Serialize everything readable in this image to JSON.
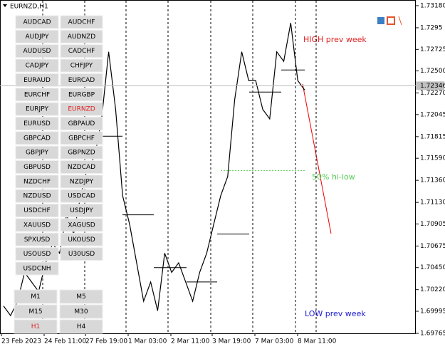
{
  "window_title": "EURNZD,H1",
  "symbols": [
    [
      "AUDCAD",
      "AUDCHF"
    ],
    [
      "AUDJPY",
      "AUDNZD"
    ],
    [
      "AUDUSD",
      "CADCHF"
    ],
    [
      "CADJPY",
      "CHFJPY"
    ],
    [
      "EURAUD",
      "EURCAD"
    ],
    [
      "EURCHF",
      "EURGBP"
    ],
    [
      "EURJPY",
      "EURNZD"
    ],
    [
      "EURUSD",
      "GBPAUD"
    ],
    [
      "GBPCAD",
      "GBPCHF"
    ],
    [
      "GBPJPY",
      "GBPNZD"
    ],
    [
      "GBPUSD",
      "NZDCAD"
    ],
    [
      "NZDCHF",
      "NZDJPY"
    ],
    [
      "NZDUSD",
      "USDCAD"
    ],
    [
      "USDCHF",
      "USDJPY"
    ],
    [
      "XAUUSD",
      "XAGUSD"
    ],
    [
      "SPXUSD",
      "UKOUSD"
    ],
    [
      "USOUSD",
      "U30USD"
    ],
    [
      "USDCNH"
    ]
  ],
  "active_symbol": [
    6,
    1
  ],
  "timeframes": [
    [
      "M1",
      "M5"
    ],
    [
      "M15",
      "M30"
    ],
    [
      "H1",
      "H4"
    ]
  ],
  "active_timeframe": [
    2,
    0
  ],
  "annotations": {
    "high": "HIGH prev week",
    "mid": "50% hi-low",
    "low": "LOW prev week"
  },
  "price_axis": {
    "ylim": [
      1.69765,
      1.7318
    ],
    "yticks": [
      {
        "value": 1.7318,
        "label": "1.73180"
      },
      1.7295,
      1.72725,
      {
        "value": 1.725,
        "label": "1.72500"
      },
      {
        "value": 1.7227,
        "label": "1.72270"
      },
      1.72045,
      1.71815,
      {
        "value": 1.7159,
        "label": "1.71590"
      },
      {
        "value": 1.7136,
        "label": "1.71360"
      },
      {
        "value": 1.7113,
        "label": "1.71130"
      },
      1.70905,
      1.70675,
      {
        "value": 1.7045,
        "label": "1.70450"
      },
      {
        "value": 1.7022,
        "label": "1.70220"
      },
      1.69995,
      1.69765
    ],
    "current_price": {
      "value": 1.72346,
      "label": "1.72346"
    }
  },
  "time_axis": [
    "23 Feb 2023",
    "24 Feb 11:00",
    "27 Feb 19:00",
    "1 Mar 03:00",
    "2 Mar 11:00",
    "3 Mar 19:00",
    "7 Mar 03:00",
    "8 Mar 11:00"
  ],
  "closes": [
    1.7005,
    1.6995,
    1.701,
    1.704,
    1.703,
    1.702,
    1.705,
    1.707,
    1.706,
    1.71,
    1.708,
    1.712,
    1.715,
    1.716,
    1.72,
    1.727,
    1.721,
    1.712,
    1.709,
    1.705,
    1.701,
    1.703,
    1.7,
    1.706,
    1.704,
    1.705,
    1.703,
    1.701,
    1.704,
    1.706,
    1.709,
    1.712,
    1.714,
    1.722,
    1.727,
    1.724,
    1.724,
    1.721,
    1.72,
    1.727,
    1.726,
    1.73,
    1.724,
    1.723
  ],
  "levels": [
    1.7182,
    1.71,
    1.7045,
    1.703,
    1.708,
    1.7228,
    1.7251
  ],
  "mid_level": 1.7146
}
